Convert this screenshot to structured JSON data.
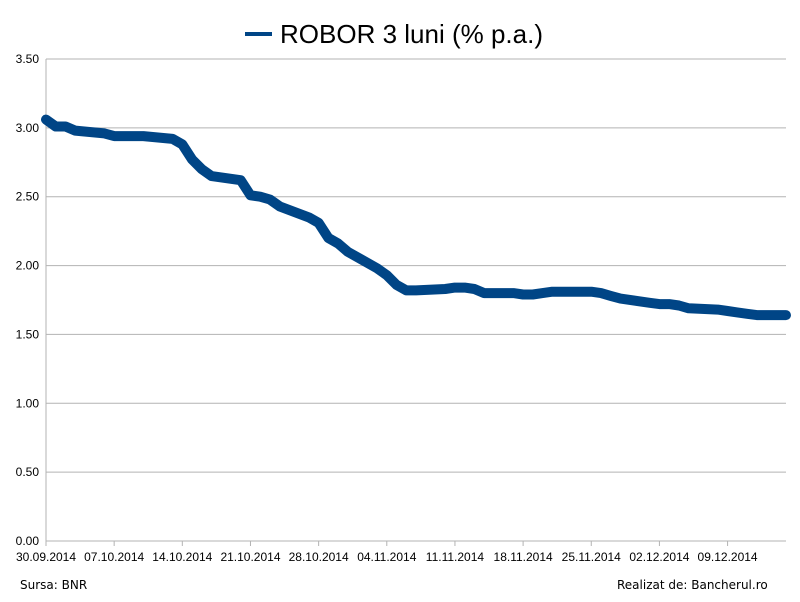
{
  "chart_data": {
    "type": "line",
    "legend_position": "top",
    "grid": true,
    "ylim": [
      0,
      3.5
    ],
    "y_ticks": [
      "0.00",
      "0.50",
      "1.00",
      "1.50",
      "2.00",
      "2.50",
      "3.00",
      "3.50"
    ],
    "x_tick_labels": [
      "30.09.2014",
      "07.10.2014",
      "14.10.2014",
      "21.10.2014",
      "28.10.2014",
      "04.11.2014",
      "11.11.2014",
      "18.11.2014",
      "25.11.2014",
      "02.12.2014",
      "09.12.2014"
    ],
    "x_range": [
      "30.09.2014",
      "15.12.2014"
    ],
    "series": [
      {
        "name": "ROBOR 3 luni (% p.a.)",
        "color": "#004586",
        "points": [
          [
            "30.09.2014",
            3.06
          ],
          [
            "01.10.2014",
            3.01
          ],
          [
            "02.10.2014",
            3.01
          ],
          [
            "03.10.2014",
            2.98
          ],
          [
            "06.10.2014",
            2.96
          ],
          [
            "07.10.2014",
            2.94
          ],
          [
            "08.10.2014",
            2.94
          ],
          [
            "09.10.2014",
            2.94
          ],
          [
            "10.10.2014",
            2.94
          ],
          [
            "13.10.2014",
            2.92
          ],
          [
            "14.10.2014",
            2.88
          ],
          [
            "15.10.2014",
            2.77
          ],
          [
            "16.10.2014",
            2.7
          ],
          [
            "17.10.2014",
            2.65
          ],
          [
            "20.10.2014",
            2.62
          ],
          [
            "21.10.2014",
            2.51
          ],
          [
            "22.10.2014",
            2.5
          ],
          [
            "23.10.2014",
            2.48
          ],
          [
            "24.10.2014",
            2.43
          ],
          [
            "27.10.2014",
            2.35
          ],
          [
            "28.10.2014",
            2.31
          ],
          [
            "29.10.2014",
            2.2
          ],
          [
            "30.10.2014",
            2.16
          ],
          [
            "31.10.2014",
            2.1
          ],
          [
            "03.11.2014",
            1.98
          ],
          [
            "04.11.2014",
            1.93
          ],
          [
            "05.11.2014",
            1.86
          ],
          [
            "06.11.2014",
            1.82
          ],
          [
            "07.11.2014",
            1.82
          ],
          [
            "10.11.2014",
            1.83
          ],
          [
            "11.11.2014",
            1.84
          ],
          [
            "12.11.2014",
            1.84
          ],
          [
            "13.11.2014",
            1.83
          ],
          [
            "14.11.2014",
            1.8
          ],
          [
            "17.11.2014",
            1.8
          ],
          [
            "18.11.2014",
            1.79
          ],
          [
            "19.11.2014",
            1.79
          ],
          [
            "20.11.2014",
            1.8
          ],
          [
            "21.11.2014",
            1.81
          ],
          [
            "24.11.2014",
            1.81
          ],
          [
            "25.11.2014",
            1.81
          ],
          [
            "26.11.2014",
            1.8
          ],
          [
            "27.11.2014",
            1.78
          ],
          [
            "28.11.2014",
            1.76
          ],
          [
            "01.12.2014",
            1.73
          ],
          [
            "02.12.2014",
            1.72
          ],
          [
            "03.12.2014",
            1.72
          ],
          [
            "04.12.2014",
            1.71
          ],
          [
            "05.12.2014",
            1.69
          ],
          [
            "08.12.2014",
            1.68
          ],
          [
            "09.12.2014",
            1.67
          ],
          [
            "10.12.2014",
            1.66
          ],
          [
            "11.12.2014",
            1.65
          ],
          [
            "12.12.2014",
            1.64
          ],
          [
            "15.12.2014",
            1.64
          ]
        ]
      }
    ]
  },
  "footer": {
    "source": "Sursa: BNR",
    "credit": "Realizat de: Bancherul.ro"
  }
}
